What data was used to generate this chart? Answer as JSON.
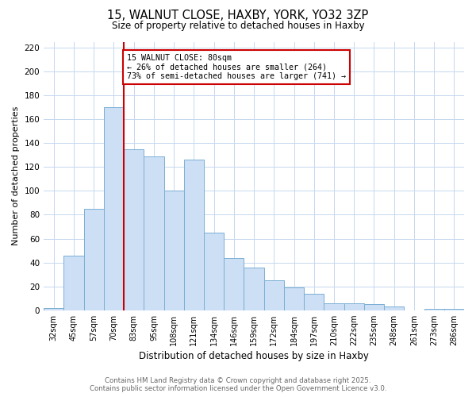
{
  "title": "15, WALNUT CLOSE, HAXBY, YORK, YO32 3ZP",
  "subtitle": "Size of property relative to detached houses in Haxby",
  "xlabel": "Distribution of detached houses by size in Haxby",
  "ylabel": "Number of detached properties",
  "categories": [
    "32sqm",
    "45sqm",
    "57sqm",
    "70sqm",
    "83sqm",
    "95sqm",
    "108sqm",
    "121sqm",
    "134sqm",
    "146sqm",
    "159sqm",
    "172sqm",
    "184sqm",
    "197sqm",
    "210sqm",
    "222sqm",
    "235sqm",
    "248sqm",
    "261sqm",
    "273sqm",
    "286sqm"
  ],
  "values": [
    2,
    46,
    85,
    170,
    135,
    129,
    100,
    126,
    65,
    44,
    36,
    25,
    19,
    14,
    6,
    6,
    5,
    3,
    0,
    1,
    1
  ],
  "bar_color": "#ccdff5",
  "bar_edge_color": "#7bafd4",
  "vline_after_index": 3,
  "vline_color": "#cc0000",
  "annotation_title": "15 WALNUT CLOSE: 80sqm",
  "annotation_line1": "← 26% of detached houses are smaller (264)",
  "annotation_line2": "73% of semi-detached houses are larger (741) →",
  "annotation_box_color": "#ffffff",
  "annotation_box_edge": "#cc0000",
  "ylim": [
    0,
    225
  ],
  "yticks": [
    0,
    20,
    40,
    60,
    80,
    100,
    120,
    140,
    160,
    180,
    200,
    220
  ],
  "footer_line1": "Contains HM Land Registry data © Crown copyright and database right 2025.",
  "footer_line2": "Contains public sector information licensed under the Open Government Licence v3.0.",
  "bg_color": "#ffffff",
  "grid_color": "#c5d8ee"
}
